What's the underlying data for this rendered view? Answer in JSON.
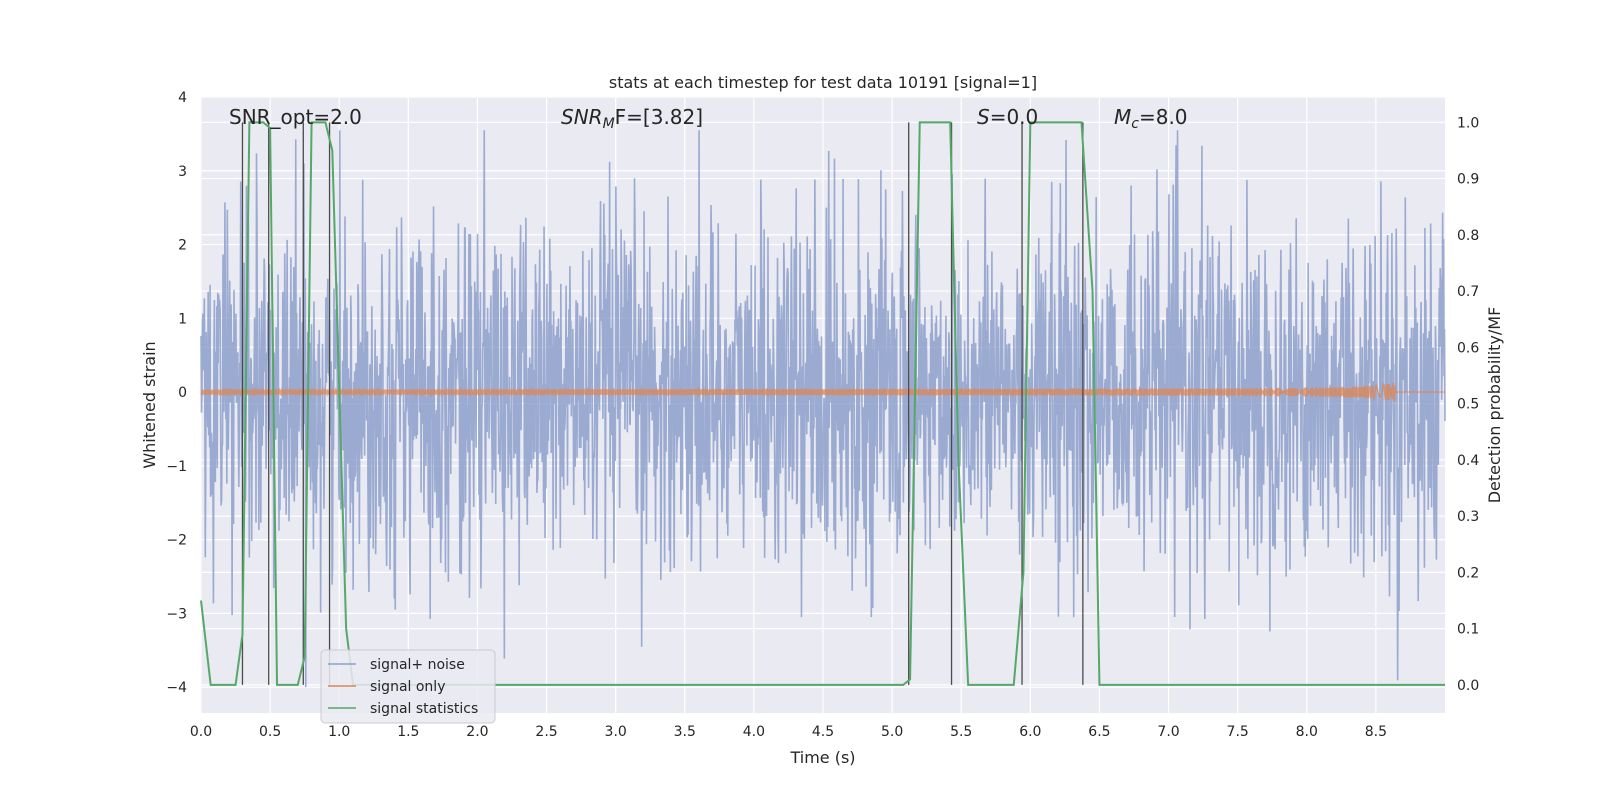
{
  "chart_data": {
    "type": "line",
    "title": "stats at each timestep for test data 10191 [signal=1]",
    "xlabel": "Time (s)",
    "ylabel_left": "Whitened strain",
    "ylabel_right": "Detection probability/MF",
    "xlim": [
      0.0,
      9.0
    ],
    "ylim_left": [
      -4.35,
      4.0
    ],
    "ylim_right": [
      -0.05,
      1.045
    ],
    "x_ticks": [
      "0.0",
      "0.5",
      "1.0",
      "1.5",
      "2.0",
      "2.5",
      "3.0",
      "3.5",
      "4.0",
      "4.5",
      "5.0",
      "5.5",
      "6.0",
      "6.5",
      "7.0",
      "7.5",
      "8.0",
      "8.5"
    ],
    "y_ticks_left": [
      "4",
      "3",
      "2",
      "1",
      "0",
      "−1",
      "−2",
      "−3",
      "−4"
    ],
    "y_ticks_right": [
      "1.0",
      "0.9",
      "0.8",
      "0.7",
      "0.6",
      "0.5",
      "0.4",
      "0.3",
      "0.2",
      "0.1",
      "0.0"
    ],
    "grid": true,
    "background": "#eaeaf2",
    "legend_position": "lower-left",
    "annotations": {
      "snr_opt": "SNR_opt=2.0",
      "snr_mf_base": "SNR",
      "snr_mf_sub": "M",
      "snr_mf_rest": "F=[3.82]",
      "s_label": "S",
      "s_value": "=0.0",
      "mc_label": "M",
      "mc_sub": "c",
      "mc_value": "=8.0"
    },
    "series": [
      {
        "name": "signal+ noise",
        "color": "#8c9fcb",
        "description_points": "noise band approx between -2.8 and 3.0 across full duration"
      },
      {
        "name": "signal only",
        "color": "#dd8452",
        "chirp_end_x": 8.65,
        "chirp_max_amplitude": 0.2
      },
      {
        "name": "signal statistics",
        "color": "#55a868",
        "x": [
          0.0,
          0.07,
          0.25,
          0.3,
          0.35,
          0.45,
          0.5,
          0.55,
          0.6,
          0.7,
          0.75,
          0.8,
          0.9,
          0.95,
          1.05,
          1.1,
          1.2,
          2.0,
          3.0,
          4.0,
          5.0,
          5.08,
          5.13,
          5.2,
          5.3,
          5.42,
          5.48,
          5.55,
          5.6,
          5.7,
          5.88,
          5.95,
          6.0,
          6.2,
          6.37,
          6.45,
          6.5,
          6.6,
          7.0,
          8.0,
          9.0
        ],
        "y": [
          0.15,
          0.0,
          0.0,
          0.09,
          1.0,
          1.0,
          0.99,
          0.0,
          0.0,
          0.0,
          0.05,
          1.0,
          1.0,
          0.95,
          0.1,
          0.0,
          0.0,
          0.0,
          0.0,
          0.0,
          0.0,
          0.0,
          0.01,
          1.0,
          1.0,
          1.0,
          0.4,
          0.0,
          0.0,
          0.0,
          0.0,
          0.2,
          1.0,
          1.0,
          1.0,
          0.7,
          0.0,
          0.0,
          0.0,
          0.0,
          0.0
        ]
      }
    ],
    "vertical_markers": [
      {
        "x": 0.3,
        "y": [
          0.0,
          1.0
        ]
      },
      {
        "x": 0.49,
        "y": [
          0.0,
          1.0
        ]
      },
      {
        "x": 0.74,
        "y": [
          0.0,
          1.0
        ]
      },
      {
        "x": 0.93,
        "y": [
          0.0,
          1.0
        ]
      },
      {
        "x": 5.12,
        "y": [
          0.0,
          1.0
        ]
      },
      {
        "x": 5.43,
        "y": [
          0.0,
          1.0
        ]
      },
      {
        "x": 5.94,
        "y": [
          0.0,
          1.0
        ]
      },
      {
        "x": 6.38,
        "y": [
          0.0,
          1.0
        ]
      }
    ]
  }
}
